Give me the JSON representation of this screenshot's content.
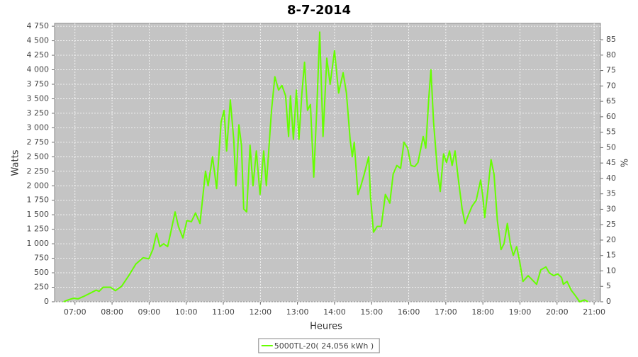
{
  "chart_data": {
    "type": "line",
    "title": "8-7-2014",
    "x_label": "Heures",
    "y_label": "Watts",
    "y2_label": "%",
    "xlim": [
      6.45,
      21.17
    ],
    "xticks": [
      {
        "value": 7,
        "label": "07:00"
      },
      {
        "value": 8,
        "label": "08:00"
      },
      {
        "value": 9,
        "label": "09:00"
      },
      {
        "value": 10,
        "label": "10:00"
      },
      {
        "value": 11,
        "label": "11:00"
      },
      {
        "value": 12,
        "label": "12:00"
      },
      {
        "value": 13,
        "label": "13:00"
      },
      {
        "value": 14,
        "label": "14:00"
      },
      {
        "value": 15,
        "label": "15:00"
      },
      {
        "value": 16,
        "label": "16:00"
      },
      {
        "value": 17,
        "label": "17:00"
      },
      {
        "value": 18,
        "label": "18:00"
      },
      {
        "value": 19,
        "label": "19:00"
      },
      {
        "value": 20,
        "label": "20:00"
      },
      {
        "value": 21,
        "label": "21:00"
      }
    ],
    "ylim": [
      0,
      4800
    ],
    "yticks": [
      0,
      250,
      500,
      750,
      {
        "value": 1000,
        "label": "1 000"
      },
      {
        "value": 1250,
        "label": "1 250"
      },
      {
        "value": 1500,
        "label": "1 500"
      },
      {
        "value": 1750,
        "label": "1 750"
      },
      {
        "value": 2000,
        "label": "2 000"
      },
      {
        "value": 2250,
        "label": "2 250"
      },
      {
        "value": 2500,
        "label": "2 500"
      },
      {
        "value": 2750,
        "label": "2 750"
      },
      {
        "value": 3000,
        "label": "3 000"
      },
      {
        "value": 3250,
        "label": "3 250"
      },
      {
        "value": 3500,
        "label": "3 500"
      },
      {
        "value": 3750,
        "label": "3 750"
      },
      {
        "value": 4000,
        "label": "4 000"
      },
      {
        "value": 4250,
        "label": "4 250"
      },
      {
        "value": 4500,
        "label": "4 500"
      },
      {
        "value": 4750,
        "label": "4 750"
      }
    ],
    "y2lim": [
      0,
      90.3
    ],
    "y2ticks": [
      0,
      5,
      10,
      15,
      20,
      25,
      30,
      35,
      40,
      45,
      50,
      55,
      60,
      65,
      70,
      75,
      80,
      85
    ],
    "grid": true,
    "legend": "bottom",
    "x": [
      6.69,
      6.81,
      6.96,
      7.08,
      7.23,
      7.42,
      7.57,
      7.65,
      7.76,
      7.96,
      8.09,
      8.26,
      8.45,
      8.64,
      8.84,
      8.99,
      9.1,
      9.2,
      9.29,
      9.39,
      9.5,
      9.6,
      9.7,
      9.79,
      9.91,
      10.02,
      10.14,
      10.25,
      10.37,
      10.52,
      10.59,
      10.71,
      10.82,
      10.94,
      11.02,
      11.09,
      11.19,
      11.28,
      11.34,
      11.42,
      11.49,
      11.55,
      11.63,
      11.72,
      11.8,
      11.89,
      11.99,
      12.09,
      12.16,
      12.3,
      12.39,
      12.49,
      12.58,
      12.68,
      12.76,
      12.81,
      12.89,
      12.97,
      13.04,
      13.12,
      13.19,
      13.27,
      13.35,
      13.44,
      13.52,
      13.6,
      13.69,
      13.79,
      13.88,
      14.0,
      14.11,
      14.23,
      14.32,
      14.42,
      14.48,
      14.53,
      14.63,
      14.71,
      14.8,
      14.92,
      14.97,
      15.05,
      15.15,
      15.26,
      15.37,
      15.49,
      15.58,
      15.68,
      15.78,
      15.87,
      15.97,
      16.06,
      16.16,
      16.25,
      16.39,
      16.46,
      16.54,
      16.6,
      16.67,
      16.77,
      16.85,
      16.94,
      17.02,
      17.1,
      17.17,
      17.25,
      17.34,
      17.44,
      17.52,
      17.61,
      17.71,
      17.82,
      17.94,
      18.0,
      18.05,
      18.13,
      18.22,
      18.3,
      18.39,
      18.49,
      18.57,
      18.66,
      18.74,
      18.82,
      18.91,
      18.99,
      19.08,
      19.22,
      19.33,
      19.45,
      19.56,
      19.7,
      19.79,
      19.91,
      20.02,
      20.12,
      20.17,
      20.27,
      20.38,
      20.5,
      20.61,
      20.74,
      20.84
    ],
    "series": [
      {
        "name": "5000TL-20( 24,056 kWh )",
        "color": "#66ff00",
        "values": [
          0,
          30,
          60,
          50,
          90,
          150,
          200,
          180,
          250,
          250,
          190,
          270,
          450,
          650,
          760,
          740,
          900,
          1180,
          950,
          1000,
          950,
          1250,
          1550,
          1300,
          1100,
          1400,
          1380,
          1530,
          1350,
          2250,
          2000,
          2500,
          1950,
          3100,
          3300,
          2600,
          3480,
          2800,
          2000,
          3050,
          2700,
          1600,
          1550,
          2700,
          2000,
          2600,
          1850,
          2600,
          2000,
          3300,
          3880,
          3650,
          3730,
          3550,
          2850,
          3550,
          2800,
          3650,
          2800,
          3600,
          4130,
          3300,
          3400,
          2150,
          3300,
          4650,
          2850,
          4200,
          3750,
          4330,
          3600,
          3950,
          3600,
          2800,
          2500,
          2750,
          1850,
          2000,
          2200,
          2500,
          1800,
          1200,
          1300,
          1300,
          1850,
          1700,
          2200,
          2350,
          2300,
          2750,
          2650,
          2350,
          2330,
          2400,
          2850,
          2650,
          3500,
          4000,
          3100,
          2300,
          1900,
          2550,
          2400,
          2600,
          2350,
          2600,
          2100,
          1600,
          1350,
          1500,
          1650,
          1750,
          2100,
          1800,
          1450,
          1900,
          2450,
          2200,
          1400,
          900,
          1000,
          1350,
          1000,
          800,
          950,
          700,
          350,
          450,
          380,
          300,
          550,
          600,
          500,
          450,
          480,
          420,
          300,
          350,
          200,
          100,
          0,
          30,
          0
        ]
      }
    ]
  }
}
